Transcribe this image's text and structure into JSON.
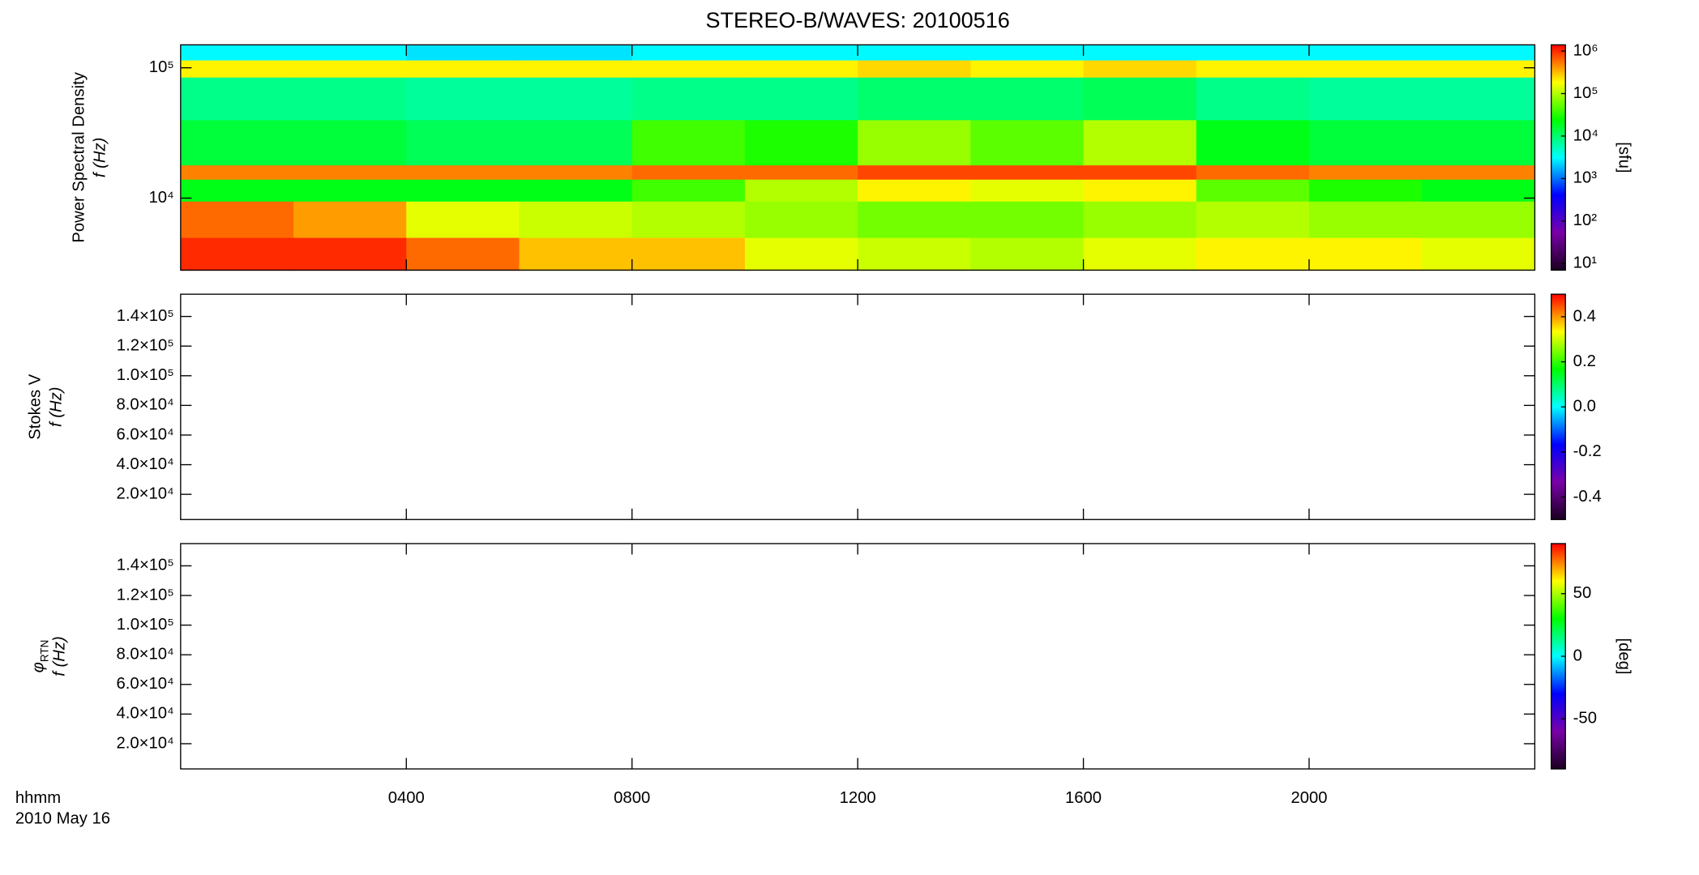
{
  "chart_data": [
    {
      "type": "heatmap",
      "title": "STEREO-B/WAVES: 20100516",
      "ylabel": "Power Spectral Density",
      "ylabel_unit": "f (Hz)",
      "ylog": true,
      "ylim": [
        2800,
        150000
      ],
      "yticks": [
        {
          "value": 10000,
          "label": "10⁴"
        },
        {
          "value": 100000,
          "label": "10⁵"
        }
      ],
      "xlim": [
        0,
        24
      ],
      "xticks": [
        {
          "value": 4,
          "label": "0400"
        },
        {
          "value": 8,
          "label": "0800"
        },
        {
          "value": 12,
          "label": "1200"
        },
        {
          "value": 16,
          "label": "1600"
        },
        {
          "value": 20,
          "label": "2000"
        }
      ],
      "x_edges": [
        0,
        2,
        4,
        6,
        8,
        10,
        12,
        14,
        16,
        18,
        20,
        22,
        24
      ],
      "y_edges": [
        2800,
        5000,
        9500,
        14000,
        18000,
        40000,
        85000,
        115000,
        150000
      ],
      "values": [
        [
          1000000,
          1000000,
          600000,
          300000,
          300000,
          150000,
          120000,
          100000,
          150000,
          200000,
          200000,
          150000
        ],
        [
          600000,
          400000,
          150000,
          120000,
          100000,
          80000,
          60000,
          60000,
          80000,
          100000,
          80000,
          80000
        ],
        [
          20000,
          20000,
          20000,
          20000,
          40000,
          100000,
          200000,
          150000,
          200000,
          50000,
          30000,
          20000
        ],
        [
          500000,
          500000,
          500000,
          500000,
          600000,
          600000,
          800000,
          800000,
          800000,
          600000,
          500000,
          500000
        ],
        [
          15000,
          15000,
          12000,
          12000,
          40000,
          30000,
          80000,
          50000,
          100000,
          20000,
          15000,
          15000
        ],
        [
          8000,
          8000,
          7000,
          7000,
          8000,
          8000,
          10000,
          10000,
          12000,
          8000,
          7000,
          7000
        ],
        [
          200000,
          200000,
          200000,
          200000,
          200000,
          200000,
          250000,
          200000,
          250000,
          200000,
          200000,
          200000
        ],
        [
          3000,
          3000,
          2500,
          2500,
          3000,
          3000,
          3000,
          3000,
          3000,
          3000,
          3000,
          3000
        ]
      ],
      "colormap": [
        "#1a0020",
        "#7a00a8",
        "#0000ff",
        "#00ffff",
        "#00ff00",
        "#ffff00",
        "#ff0000"
      ],
      "clog": true,
      "clim": [
        7,
        1400000
      ],
      "cticks": [
        {
          "value": 10,
          "label": "10¹"
        },
        {
          "value": 100,
          "label": "10²"
        },
        {
          "value": 1000,
          "label": "10³"
        },
        {
          "value": 10000,
          "label": "10⁴"
        },
        {
          "value": 100000,
          "label": "10⁵"
        },
        {
          "value": 1000000,
          "label": "10⁶"
        }
      ],
      "clabel": "[sfu]"
    },
    {
      "type": "heatmap",
      "ylabel": "Stokes V",
      "ylabel_unit": "f (Hz)",
      "ylog": false,
      "ylim": [
        3000,
        155000
      ],
      "yticks": [
        {
          "value": 20000,
          "label": "2.0×10⁴"
        },
        {
          "value": 40000,
          "label": "4.0×10⁴"
        },
        {
          "value": 60000,
          "label": "6.0×10⁴"
        },
        {
          "value": 80000,
          "label": "8.0×10⁴"
        },
        {
          "value": 100000,
          "label": "1.0×10⁵"
        },
        {
          "value": 120000,
          "label": "1.2×10⁵"
        },
        {
          "value": 140000,
          "label": "1.4×10⁵"
        }
      ],
      "xlim": [
        0,
        24
      ],
      "xticks": [
        {
          "value": 4,
          "label": "0400"
        },
        {
          "value": 8,
          "label": "0800"
        },
        {
          "value": 12,
          "label": "1200"
        },
        {
          "value": 16,
          "label": "1600"
        },
        {
          "value": 20,
          "label": "2000"
        }
      ],
      "colormap": [
        "#1a0020",
        "#7a00a8",
        "#0000ff",
        "#00ffff",
        "#00ff00",
        "#ffff00",
        "#ff0000"
      ],
      "clog": false,
      "clim": [
        -0.5,
        0.5
      ],
      "cticks": [
        -0.4,
        -0.2,
        {
          "value": 0,
          "label": "0.0"
        },
        0.2,
        0.4
      ]
    },
    {
      "type": "heatmap",
      "ylabel": "φ",
      "ylabel_sub": "RTN",
      "ylabel_unit": "f (Hz)",
      "ylog": false,
      "ylim": [
        3000,
        155000
      ],
      "yticks": [
        {
          "value": 20000,
          "label": "2.0×10⁴"
        },
        {
          "value": 40000,
          "label": "4.0×10⁴"
        },
        {
          "value": 60000,
          "label": "6.0×10⁴"
        },
        {
          "value": 80000,
          "label": "8.0×10⁴"
        },
        {
          "value": 100000,
          "label": "1.0×10⁵"
        },
        {
          "value": 120000,
          "label": "1.2×10⁵"
        },
        {
          "value": 140000,
          "label": "1.4×10⁵"
        }
      ],
      "xlim": [
        0,
        24
      ],
      "xticks": [
        {
          "value": 4,
          "label": "0400"
        },
        {
          "value": 8,
          "label": "0800"
        },
        {
          "value": 12,
          "label": "1200"
        },
        {
          "value": 16,
          "label": "1600"
        },
        {
          "value": 20,
          "label": "2000"
        }
      ],
      "xlabel": "hhmm",
      "date_label": "2010 May 16",
      "colormap": [
        "#1a0020",
        "#7a00a8",
        "#0000ff",
        "#00ffff",
        "#00ff00",
        "#ffff00",
        "#ff0000"
      ],
      "clog": false,
      "clim": [
        -90,
        90
      ],
      "cticks": [
        -50,
        0,
        50
      ],
      "clabel": "[deg]"
    }
  ]
}
